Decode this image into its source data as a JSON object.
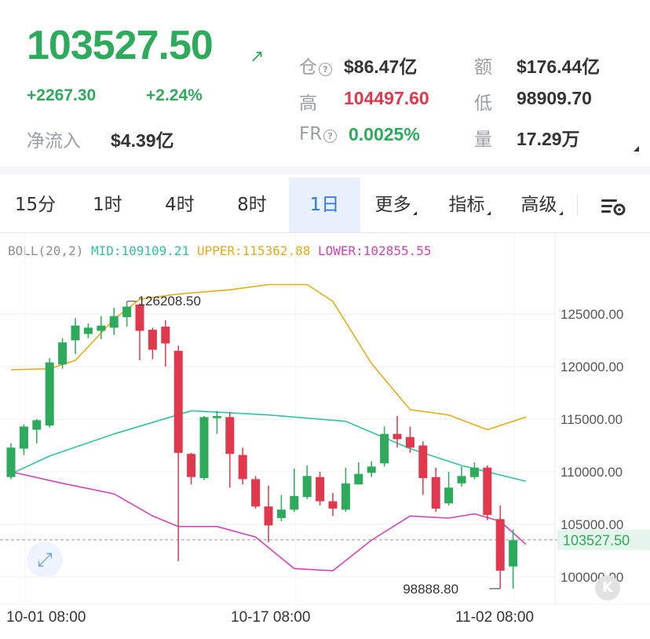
{
  "ticker": {
    "last_price": "103527.50",
    "change": "+2267.30",
    "change_pct": "+2.24%",
    "net_inflow_label": "净流入",
    "net_inflow_value": "$4.39亿",
    "arrow_icon": "arrow-up-right-icon"
  },
  "stats": {
    "oi_label": "仓",
    "oi_value": "$86.47亿",
    "turnover_label": "额",
    "turnover_value": "$176.44亿",
    "high_label": "高",
    "high_value": "104497.60",
    "low_label": "低",
    "low_value": "98909.70",
    "fr_label": "FR",
    "fr_value": "0.0025%",
    "volume_label": "量",
    "volume_value": "17.29万"
  },
  "tabs": [
    {
      "label": "15分"
    },
    {
      "label": "1时"
    },
    {
      "label": "4时"
    },
    {
      "label": "8时"
    },
    {
      "label": "1日",
      "active": true
    },
    {
      "label": "更多"
    },
    {
      "label": "指标"
    },
    {
      "label": "高级"
    }
  ],
  "indicator": {
    "name": "BOLL(20,2)",
    "mid": "MID:109109.21",
    "upper": "UPPER:115362.88",
    "lower": "LOWER:102855.55"
  },
  "colors": {
    "up": "#2eaa5c",
    "down": "#e0384c",
    "mid": "#2ec4a0",
    "upper": "#e8ac14",
    "lower": "#d443b8",
    "accent": "#2b78e4"
  },
  "chart_data": {
    "type": "candlestick",
    "y_ticks": [
      "125000.00",
      "120000.00",
      "115000.00",
      "110000.00",
      "105000.00",
      "100000.00"
    ],
    "x_labels": [
      "10-01 08:00",
      "10-17 08:00",
      "11-02 08:00"
    ],
    "last_price_tag": "103527.50",
    "high_annotation": "126208.50",
    "low_annotation": "98888.80",
    "ylim": [
      98000,
      128000
    ],
    "candles": [
      [
        109500,
        112300,
        112700,
        109300
      ],
      [
        112200,
        114300,
        114500,
        111600
      ],
      [
        114000,
        114900,
        115000,
        112700
      ],
      [
        114400,
        120400,
        120800,
        114200
      ],
      [
        120200,
        122300,
        122700,
        119800
      ],
      [
        122500,
        123900,
        124600,
        121200
      ],
      [
        123100,
        123700,
        124100,
        122700
      ],
      [
        123400,
        123900,
        124800,
        122600
      ],
      [
        123700,
        124800,
        125600,
        123000
      ],
      [
        124700,
        125700,
        126200,
        123800
      ],
      [
        125900,
        123400,
        126000,
        120600
      ],
      [
        123500,
        121600,
        123700,
        120700
      ],
      [
        123800,
        122200,
        124400,
        120000
      ],
      [
        121500,
        111800,
        122000,
        101500
      ],
      [
        111700,
        109500,
        111800,
        108800
      ],
      [
        109400,
        115200,
        115300,
        109200
      ],
      [
        115100,
        115300,
        115800,
        113600
      ],
      [
        115200,
        111700,
        115700,
        108500
      ],
      [
        111600,
        109300,
        112300,
        108800
      ],
      [
        109300,
        106700,
        109600,
        106500
      ],
      [
        106700,
        104900,
        108700,
        103300
      ],
      [
        105600,
        106400,
        107800,
        105300
      ],
      [
        106400,
        107700,
        110300,
        106200
      ],
      [
        107600,
        109600,
        110600,
        107400
      ],
      [
        109500,
        107200,
        110000,
        106800
      ],
      [
        107200,
        106500,
        108000,
        105800
      ],
      [
        106400,
        108900,
        110400,
        106200
      ],
      [
        108800,
        109800,
        110900,
        108900
      ],
      [
        109900,
        110500,
        111000,
        109500
      ],
      [
        110800,
        113600,
        114300,
        110500
      ],
      [
        113600,
        113100,
        115300,
        112300
      ],
      [
        113300,
        112300,
        114300,
        111800
      ],
      [
        112500,
        109400,
        112900,
        107800
      ],
      [
        109500,
        106500,
        110400,
        106200
      ],
      [
        107000,
        108500,
        110000,
        106800
      ],
      [
        108900,
        109600,
        110500,
        108600
      ],
      [
        109500,
        110400,
        110900,
        109300
      ],
      [
        110400,
        105900,
        110600,
        105400
      ],
      [
        105500,
        100600,
        106800,
        98900
      ],
      [
        101000,
        103500,
        104500,
        98900
      ]
    ],
    "mid_line": [
      [
        0,
        109800
      ],
      [
        3,
        111500
      ],
      [
        8,
        113600
      ],
      [
        14,
        115800
      ],
      [
        20,
        115400
      ],
      [
        26,
        114800
      ],
      [
        31,
        112200
      ],
      [
        35,
        110600
      ],
      [
        40,
        109100
      ]
    ],
    "upper_line": [
      [
        0,
        119700
      ],
      [
        3,
        119800
      ],
      [
        5,
        120600
      ],
      [
        8,
        124500
      ],
      [
        10,
        126400
      ],
      [
        13,
        126900
      ],
      [
        17,
        127300
      ],
      [
        20,
        127800
      ],
      [
        23,
        127800
      ],
      [
        25,
        126200
      ],
      [
        28,
        120300
      ],
      [
        31,
        115900
      ],
      [
        34,
        115400
      ],
      [
        37,
        114000
      ],
      [
        40,
        115200
      ]
    ],
    "lower_line": [
      [
        0,
        110000
      ],
      [
        4,
        108900
      ],
      [
        8,
        107900
      ],
      [
        11,
        105800
      ],
      [
        13,
        104800
      ],
      [
        16,
        104800
      ],
      [
        19,
        103800
      ],
      [
        22,
        100800
      ],
      [
        25,
        100600
      ],
      [
        28,
        103500
      ],
      [
        31,
        105800
      ],
      [
        34,
        105600
      ],
      [
        36,
        106000
      ],
      [
        38,
        105300
      ],
      [
        40,
        103100
      ]
    ]
  }
}
